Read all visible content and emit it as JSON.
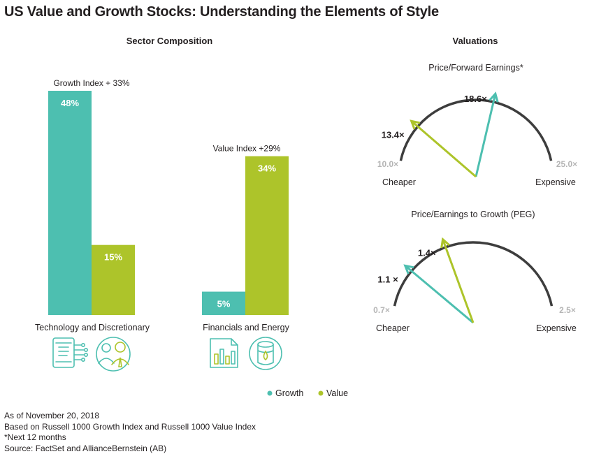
{
  "title": "US Value and Growth Stocks: Understanding the Elements of Style",
  "sector": {
    "title": "Sector Composition",
    "groups": [
      {
        "name": "Technology and Discretionary",
        "annotation": "Growth Index + 33%",
        "icons": [
          "tablet-circuit-icon",
          "people-icon"
        ]
      },
      {
        "name": "Financials and Energy",
        "annotation": "Value Index +29%",
        "icons": [
          "bar-chart-document-icon",
          "oil-barrel-icon"
        ]
      }
    ]
  },
  "valuations": {
    "title": "Valuations",
    "gauges": [
      {
        "title": "Price/Forward Earnings*",
        "min_label": "10.0×",
        "max_label": "25.0×",
        "min": 10.0,
        "max": 25.0,
        "growth": 18.6,
        "growth_label": "18.6×",
        "value": 13.4,
        "value_label": "13.4×",
        "left_label": "Cheaper",
        "right_label": "Expensive"
      },
      {
        "title": "Price/Earnings to Growth (PEG)",
        "min_label": "0.7×",
        "max_label": "2.5×",
        "min": 0.7,
        "max": 2.5,
        "growth": 1.1,
        "growth_label": "1.1 ×",
        "value": 1.4,
        "value_label": "1.4×",
        "left_label": "Cheaper",
        "right_label": "Expensive"
      }
    ]
  },
  "legend": [
    {
      "name": "Growth",
      "color": "#4dbfb0"
    },
    {
      "name": "Value",
      "color": "#adc42a"
    }
  ],
  "notes": [
    "As of November 20, 2018",
    "Based on Russell 1000 Growth Index and Russell 1000 Value Index",
    "*Next 12 months",
    "Source: FactSet and AllianceBernstein (AB)"
  ],
  "colors": {
    "growth": "#4dbfb0",
    "value": "#adc42a",
    "arc": "#3d3d3d",
    "range_label": "#b5b5b5"
  },
  "chart_data": [
    {
      "type": "bar",
      "title": "Sector Composition",
      "categories": [
        "Technology and Discretionary",
        "Financials and Energy"
      ],
      "series": [
        {
          "name": "Growth",
          "values": [
            48,
            5
          ],
          "labels": [
            "48%",
            "5%"
          ]
        },
        {
          "name": "Value",
          "values": [
            15,
            34
          ],
          "labels": [
            "15%",
            "34%"
          ]
        }
      ],
      "ylim": [
        0,
        48
      ]
    },
    {
      "type": "gauge",
      "title": "Price/Forward Earnings*",
      "range": [
        10.0,
        25.0
      ],
      "series": [
        {
          "name": "Growth",
          "value": 18.6
        },
        {
          "name": "Value",
          "value": 13.4
        }
      ]
    },
    {
      "type": "gauge",
      "title": "Price/Earnings to Growth (PEG)",
      "range": [
        0.7,
        2.5
      ],
      "series": [
        {
          "name": "Growth",
          "value": 1.1
        },
        {
          "name": "Value",
          "value": 1.4
        }
      ]
    }
  ]
}
